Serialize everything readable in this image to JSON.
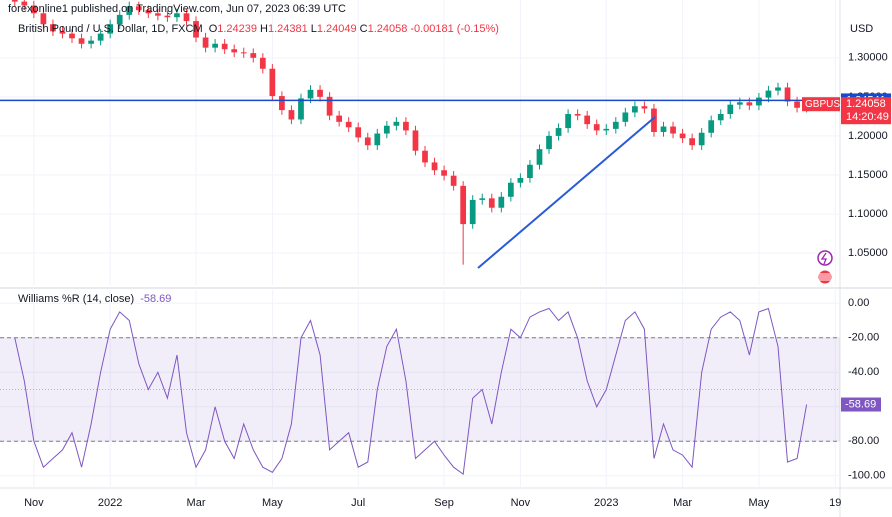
{
  "header": {
    "published": "forexonline1 published on TradingView.com, Jun 07, 2023 06:39 UTC"
  },
  "chart_data": [
    {
      "type": "candlestick",
      "title": "British Pound / U.S. Dollar, 1D, FXCM",
      "currency": "USD",
      "symbol": "GBPUSD",
      "countdown": "14:20:49",
      "ohlc_legend": [
        {
          "label": "O",
          "value": 1.24239
        },
        {
          "label": "H",
          "value": 1.24381
        },
        {
          "label": "L",
          "value": 1.24049
        },
        {
          "label": "C",
          "value": 1.24058
        }
      ],
      "change": -0.00181,
      "change_pct": {
        "value": -0.15,
        "label": "(-0.15%)"
      },
      "categories": [
        null,
        null,
        "Nov",
        null,
        null,
        null,
        null,
        null,
        null,
        null,
        "2022",
        null,
        null,
        null,
        null,
        null,
        null,
        null,
        null,
        "Mar",
        null,
        null,
        null,
        null,
        null,
        null,
        null,
        "May",
        null,
        null,
        null,
        null,
        null,
        null,
        null,
        null,
        "Jul",
        null,
        null,
        null,
        null,
        null,
        null,
        null,
        null,
        "Sep",
        null,
        null,
        null,
        null,
        null,
        null,
        null,
        "Nov",
        null,
        null,
        null,
        null,
        null,
        null,
        null,
        null,
        "2023",
        null,
        null,
        null,
        null,
        null,
        null,
        null,
        "Mar",
        null,
        null,
        null,
        null,
        null,
        null,
        null,
        "May",
        null,
        null,
        null,
        null,
        null,
        null,
        null,
        "19"
      ],
      "open": [
        1.378,
        1.372,
        1.367,
        1.357,
        1.343,
        1.334,
        1.331,
        1.325,
        1.318,
        1.322,
        1.331,
        1.343,
        1.355,
        1.366,
        1.361,
        1.357,
        1.354,
        1.352,
        1.357,
        1.347,
        1.326,
        1.313,
        1.318,
        1.311,
        1.307,
        1.306,
        1.3,
        1.286,
        1.251,
        1.233,
        1.221,
        1.248,
        1.259,
        1.25,
        1.226,
        1.218,
        1.211,
        1.198,
        1.188,
        1.203,
        1.213,
        1.218,
        1.207,
        1.181,
        1.166,
        1.156,
        1.149,
        1.136,
        1.087,
        1.118,
        1.12,
        1.108,
        1.122,
        1.14,
        1.146,
        1.163,
        1.183,
        1.2,
        1.21,
        1.228,
        1.226,
        1.215,
        1.207,
        1.209,
        1.218,
        1.23,
        1.238,
        1.235,
        1.205,
        1.212,
        1.203,
        1.197,
        1.188,
        1.204,
        1.22,
        1.228,
        1.24,
        1.243,
        1.239,
        1.249,
        1.258,
        1.262,
        1.244,
        1.236,
        null,
        null,
        null
      ],
      "high": [
        1.384,
        1.378,
        1.373,
        1.363,
        1.349,
        1.34,
        1.337,
        1.331,
        1.328,
        1.337,
        1.349,
        1.361,
        1.372,
        1.372,
        1.367,
        1.363,
        1.36,
        1.363,
        1.363,
        1.353,
        1.332,
        1.324,
        1.324,
        1.317,
        1.313,
        1.312,
        1.306,
        1.292,
        1.257,
        1.239,
        1.254,
        1.265,
        1.265,
        1.256,
        1.232,
        1.224,
        1.217,
        1.204,
        1.209,
        1.219,
        1.224,
        1.224,
        1.213,
        1.187,
        1.172,
        1.162,
        1.155,
        1.142,
        1.124,
        1.126,
        1.126,
        1.128,
        1.146,
        1.152,
        1.169,
        1.189,
        1.206,
        1.216,
        1.234,
        1.234,
        1.232,
        1.221,
        1.215,
        1.224,
        1.236,
        1.244,
        1.244,
        1.241,
        1.218,
        1.218,
        1.209,
        1.203,
        1.21,
        1.226,
        1.234,
        1.246,
        1.249,
        1.249,
        1.255,
        1.264,
        1.268,
        1.268,
        1.25,
        1.247,
        null,
        null,
        null
      ],
      "low": [
        1.366,
        1.361,
        1.351,
        1.337,
        1.328,
        1.325,
        1.319,
        1.312,
        1.312,
        1.316,
        1.325,
        1.337,
        1.349,
        1.355,
        1.351,
        1.348,
        1.346,
        1.346,
        1.341,
        1.32,
        1.307,
        1.307,
        1.305,
        1.301,
        1.3,
        1.294,
        1.28,
        1.245,
        1.227,
        1.215,
        1.215,
        1.242,
        1.244,
        1.22,
        1.212,
        1.205,
        1.192,
        1.182,
        1.182,
        1.197,
        1.207,
        1.201,
        1.175,
        1.16,
        1.15,
        1.143,
        1.13,
        1.035,
        1.081,
        1.112,
        1.102,
        1.102,
        1.116,
        1.134,
        1.14,
        1.157,
        1.177,
        1.194,
        1.204,
        1.22,
        1.209,
        1.201,
        1.201,
        1.203,
        1.212,
        1.224,
        1.229,
        1.199,
        1.199,
        1.197,
        1.191,
        1.182,
        1.182,
        1.198,
        1.214,
        1.222,
        1.234,
        1.233,
        1.233,
        1.243,
        1.252,
        1.238,
        1.23,
        1.23,
        null,
        null,
        null
      ],
      "close": [
        1.372,
        1.367,
        1.357,
        1.343,
        1.334,
        1.331,
        1.325,
        1.318,
        1.322,
        1.331,
        1.343,
        1.355,
        1.366,
        1.361,
        1.357,
        1.354,
        1.352,
        1.357,
        1.347,
        1.326,
        1.313,
        1.318,
        1.311,
        1.307,
        1.306,
        1.3,
        1.286,
        1.251,
        1.233,
        1.221,
        1.248,
        1.259,
        1.25,
        1.226,
        1.218,
        1.211,
        1.198,
        1.188,
        1.203,
        1.213,
        1.218,
        1.207,
        1.181,
        1.166,
        1.156,
        1.149,
        1.136,
        1.087,
        1.118,
        1.12,
        1.108,
        1.122,
        1.14,
        1.146,
        1.163,
        1.183,
        1.2,
        1.21,
        1.228,
        1.226,
        1.215,
        1.207,
        1.209,
        1.218,
        1.23,
        1.238,
        1.235,
        1.205,
        1.212,
        1.203,
        1.197,
        1.188,
        1.204,
        1.22,
        1.228,
        1.24,
        1.243,
        1.239,
        1.249,
        1.258,
        1.262,
        1.244,
        1.236,
        1.241,
        null,
        null,
        null
      ],
      "up_color": "#089981",
      "down_color": "#f23645",
      "ylim": [
        1.009,
        1.351
      ],
      "yticks": [
        {
          "value": 1.05,
          "label": "1.05000"
        },
        {
          "value": 1.1,
          "label": "1.10000"
        },
        {
          "value": 1.15,
          "label": "1.15000"
        },
        {
          "value": 1.2,
          "label": "1.20000"
        },
        {
          "value": 1.25,
          "label": "1.25000"
        },
        {
          "value": 1.3,
          "label": "1.30000"
        }
      ],
      "hline": {
        "value": 1.24541,
        "color": "#1848cc"
      },
      "grid": true
    },
    {
      "type": "line",
      "title": "Williams %R (14, close)",
      "color": "#7e57c2",
      "values": [
        -20,
        -45,
        -80,
        -95,
        -90,
        -85,
        -75,
        -95,
        -70,
        -40,
        -15,
        -5,
        -10,
        -35,
        -50,
        -40,
        -55,
        -30,
        -75,
        -95,
        -85,
        -60,
        -80,
        -90,
        -70,
        -85,
        -95,
        -98,
        -90,
        -70,
        -20,
        -10,
        -30,
        -85,
        -80,
        -75,
        -95,
        -92,
        -50,
        -25,
        -15,
        -45,
        -90,
        -85,
        -80,
        -88,
        -95,
        -99,
        -55,
        -50,
        -70,
        -40,
        -15,
        -20,
        -8,
        -5,
        -3,
        -10,
        -5,
        -20,
        -45,
        -60,
        -50,
        -30,
        -10,
        -5,
        -15,
        -90,
        -70,
        -85,
        -88,
        -95,
        -40,
        -15,
        -8,
        -5,
        -10,
        -30,
        -5,
        -3,
        -25,
        -92,
        -90,
        -58.69,
        null,
        null,
        null
      ],
      "ylim": [
        -106.5,
        7.7
      ],
      "yticks": [
        {
          "value": 0,
          "label": "0.00"
        },
        {
          "value": -20,
          "label": "-20.00"
        },
        {
          "value": -40,
          "label": "-40.00"
        },
        {
          "value": -60,
          "label": "-60.00"
        },
        {
          "value": -80,
          "label": "-80.00"
        },
        {
          "value": -100,
          "label": "-100.00"
        }
      ],
      "band": [
        -20,
        -80
      ],
      "midline": -50
    }
  ]
}
